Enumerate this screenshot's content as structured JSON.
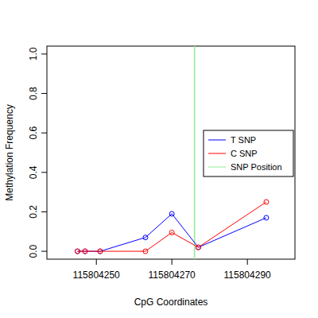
{
  "chart_data": {
    "type": "line",
    "x_label": "CpG Coordinates",
    "y_label": "Methylation Frequency",
    "x": [
      115804245,
      115804247,
      115804251,
      115804263,
      115804270,
      115804277,
      115804295
    ],
    "series": [
      {
        "name": "T SNP",
        "color": "#0000ff",
        "marker": "circle",
        "line_style": "solid",
        "values": [
          0,
          0,
          0,
          0.07,
          0.19,
          0.02,
          0.17
        ]
      },
      {
        "name": "C SNP",
        "color": "#ff0000",
        "marker": "circle",
        "line_style": "solid",
        "values": [
          0,
          0,
          0,
          0,
          0.095,
          0.02,
          0.25
        ]
      }
    ],
    "vlines": [
      {
        "name": "SNP Position",
        "x": 115804276,
        "color": "#90ee90"
      }
    ],
    "xlim": [
      115804236.9,
      115804302.6
    ],
    "ylim": [
      -0.04,
      1.04
    ],
    "xticks": [
      115804250,
      115804270,
      115804290
    ],
    "yticks": [
      {
        "value": 0,
        "label": "0.0"
      },
      0.2,
      0.4,
      0.6,
      0.8,
      {
        "value": 1,
        "label": "1.0"
      }
    ],
    "legend": "right",
    "grid": false
  }
}
